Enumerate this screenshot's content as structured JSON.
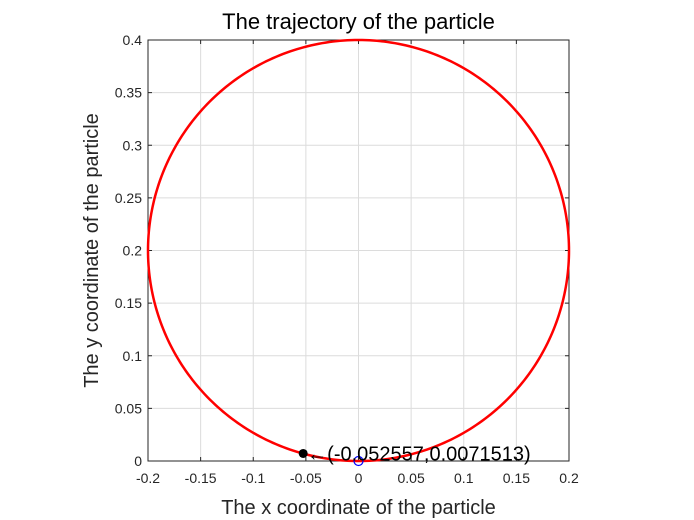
{
  "chart_data": {
    "type": "line",
    "title": "The trajectory of the particle",
    "xlabel": "The x coordinate of the particle",
    "ylabel": "The y coordinate of the particle",
    "xlim": [
      -0.2,
      0.2
    ],
    "ylim": [
      0,
      0.4
    ],
    "grid": true,
    "xticks": [
      "-0.2",
      "-0.15",
      "-0.1",
      "-0.05",
      "0",
      "0.05",
      "0.1",
      "0.15",
      "0.2"
    ],
    "yticks": [
      "0",
      "0.05",
      "0.1",
      "0.15",
      "0.2",
      "0.25",
      "0.3",
      "0.35",
      "0.4"
    ],
    "series": [
      {
        "curve": "circle",
        "center": [
          0,
          0.2
        ],
        "radius": 0.2,
        "color": "#ff0000"
      }
    ],
    "start_point": {
      "x": 0,
      "y": 0,
      "color": "#0000ff",
      "marker": "open-circle"
    },
    "end_point": {
      "x": -0.052557,
      "y": 0.0071513,
      "color": "#000000",
      "marker": "filled-circle"
    },
    "annotation": {
      "text": "←(-0.052557,0.0071513)"
    }
  }
}
